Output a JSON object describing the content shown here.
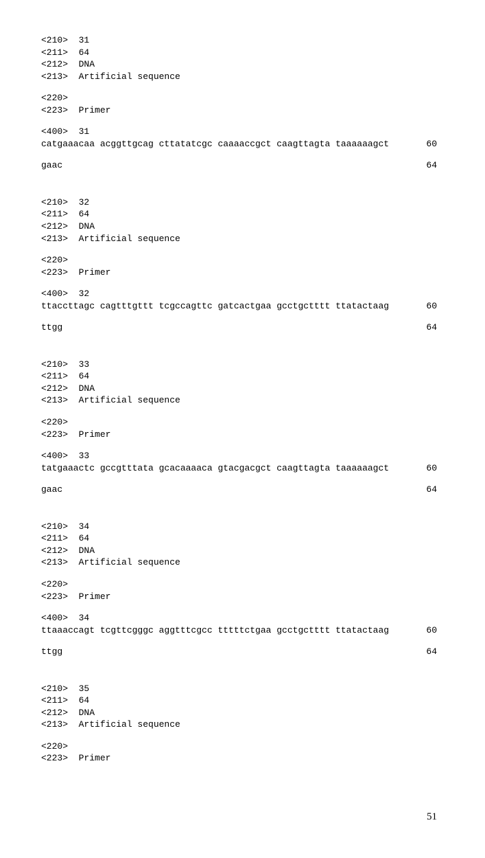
{
  "page_number": "51",
  "entries": [
    {
      "tag210": "<210>  31",
      "tag211": "<211>  64",
      "tag212": "<212>  DNA",
      "tag213": "<213>  Artificial sequence",
      "tag220": "<220>",
      "tag223": "<223>  Primer",
      "tag400": "<400>  31",
      "seq_lines": [
        {
          "seq": "catgaaacaa acggttgcag cttatatcgc caaaaccgct caagttagta taaaaaagct",
          "num": "60"
        },
        {
          "seq": "gaac",
          "num": "64"
        }
      ]
    },
    {
      "tag210": "<210>  32",
      "tag211": "<211>  64",
      "tag212": "<212>  DNA",
      "tag213": "<213>  Artificial sequence",
      "tag220": "<220>",
      "tag223": "<223>  Primer",
      "tag400": "<400>  32",
      "seq_lines": [
        {
          "seq": "ttaccttagc cagtttgttt tcgccagttc gatcactgaa gcctgctttt ttatactaag",
          "num": "60"
        },
        {
          "seq": "ttgg",
          "num": "64"
        }
      ]
    },
    {
      "tag210": "<210>  33",
      "tag211": "<211>  64",
      "tag212": "<212>  DNA",
      "tag213": "<213>  Artificial sequence",
      "tag220": "<220>",
      "tag223": "<223>  Primer",
      "tag400": "<400>  33",
      "seq_lines": [
        {
          "seq": "tatgaaactc gccgtttata gcacaaaaca gtacgacgct caagttagta taaaaaagct",
          "num": "60"
        },
        {
          "seq": "gaac",
          "num": "64"
        }
      ]
    },
    {
      "tag210": "<210>  34",
      "tag211": "<211>  64",
      "tag212": "<212>  DNA",
      "tag213": "<213>  Artificial sequence",
      "tag220": "<220>",
      "tag223": "<223>  Primer",
      "tag400": "<400>  34",
      "seq_lines": [
        {
          "seq": "ttaaaccagt tcgttcgggc aggtttcgcc tttttctgaa gcctgctttt ttatactaag",
          "num": "60"
        },
        {
          "seq": "ttgg",
          "num": "64"
        }
      ]
    },
    {
      "tag210": "<210>  35",
      "tag211": "<211>  64",
      "tag212": "<212>  DNA",
      "tag213": "<213>  Artificial sequence",
      "tag220": "<220>",
      "tag223": "<223>  Primer",
      "tag400": "",
      "seq_lines": []
    }
  ]
}
